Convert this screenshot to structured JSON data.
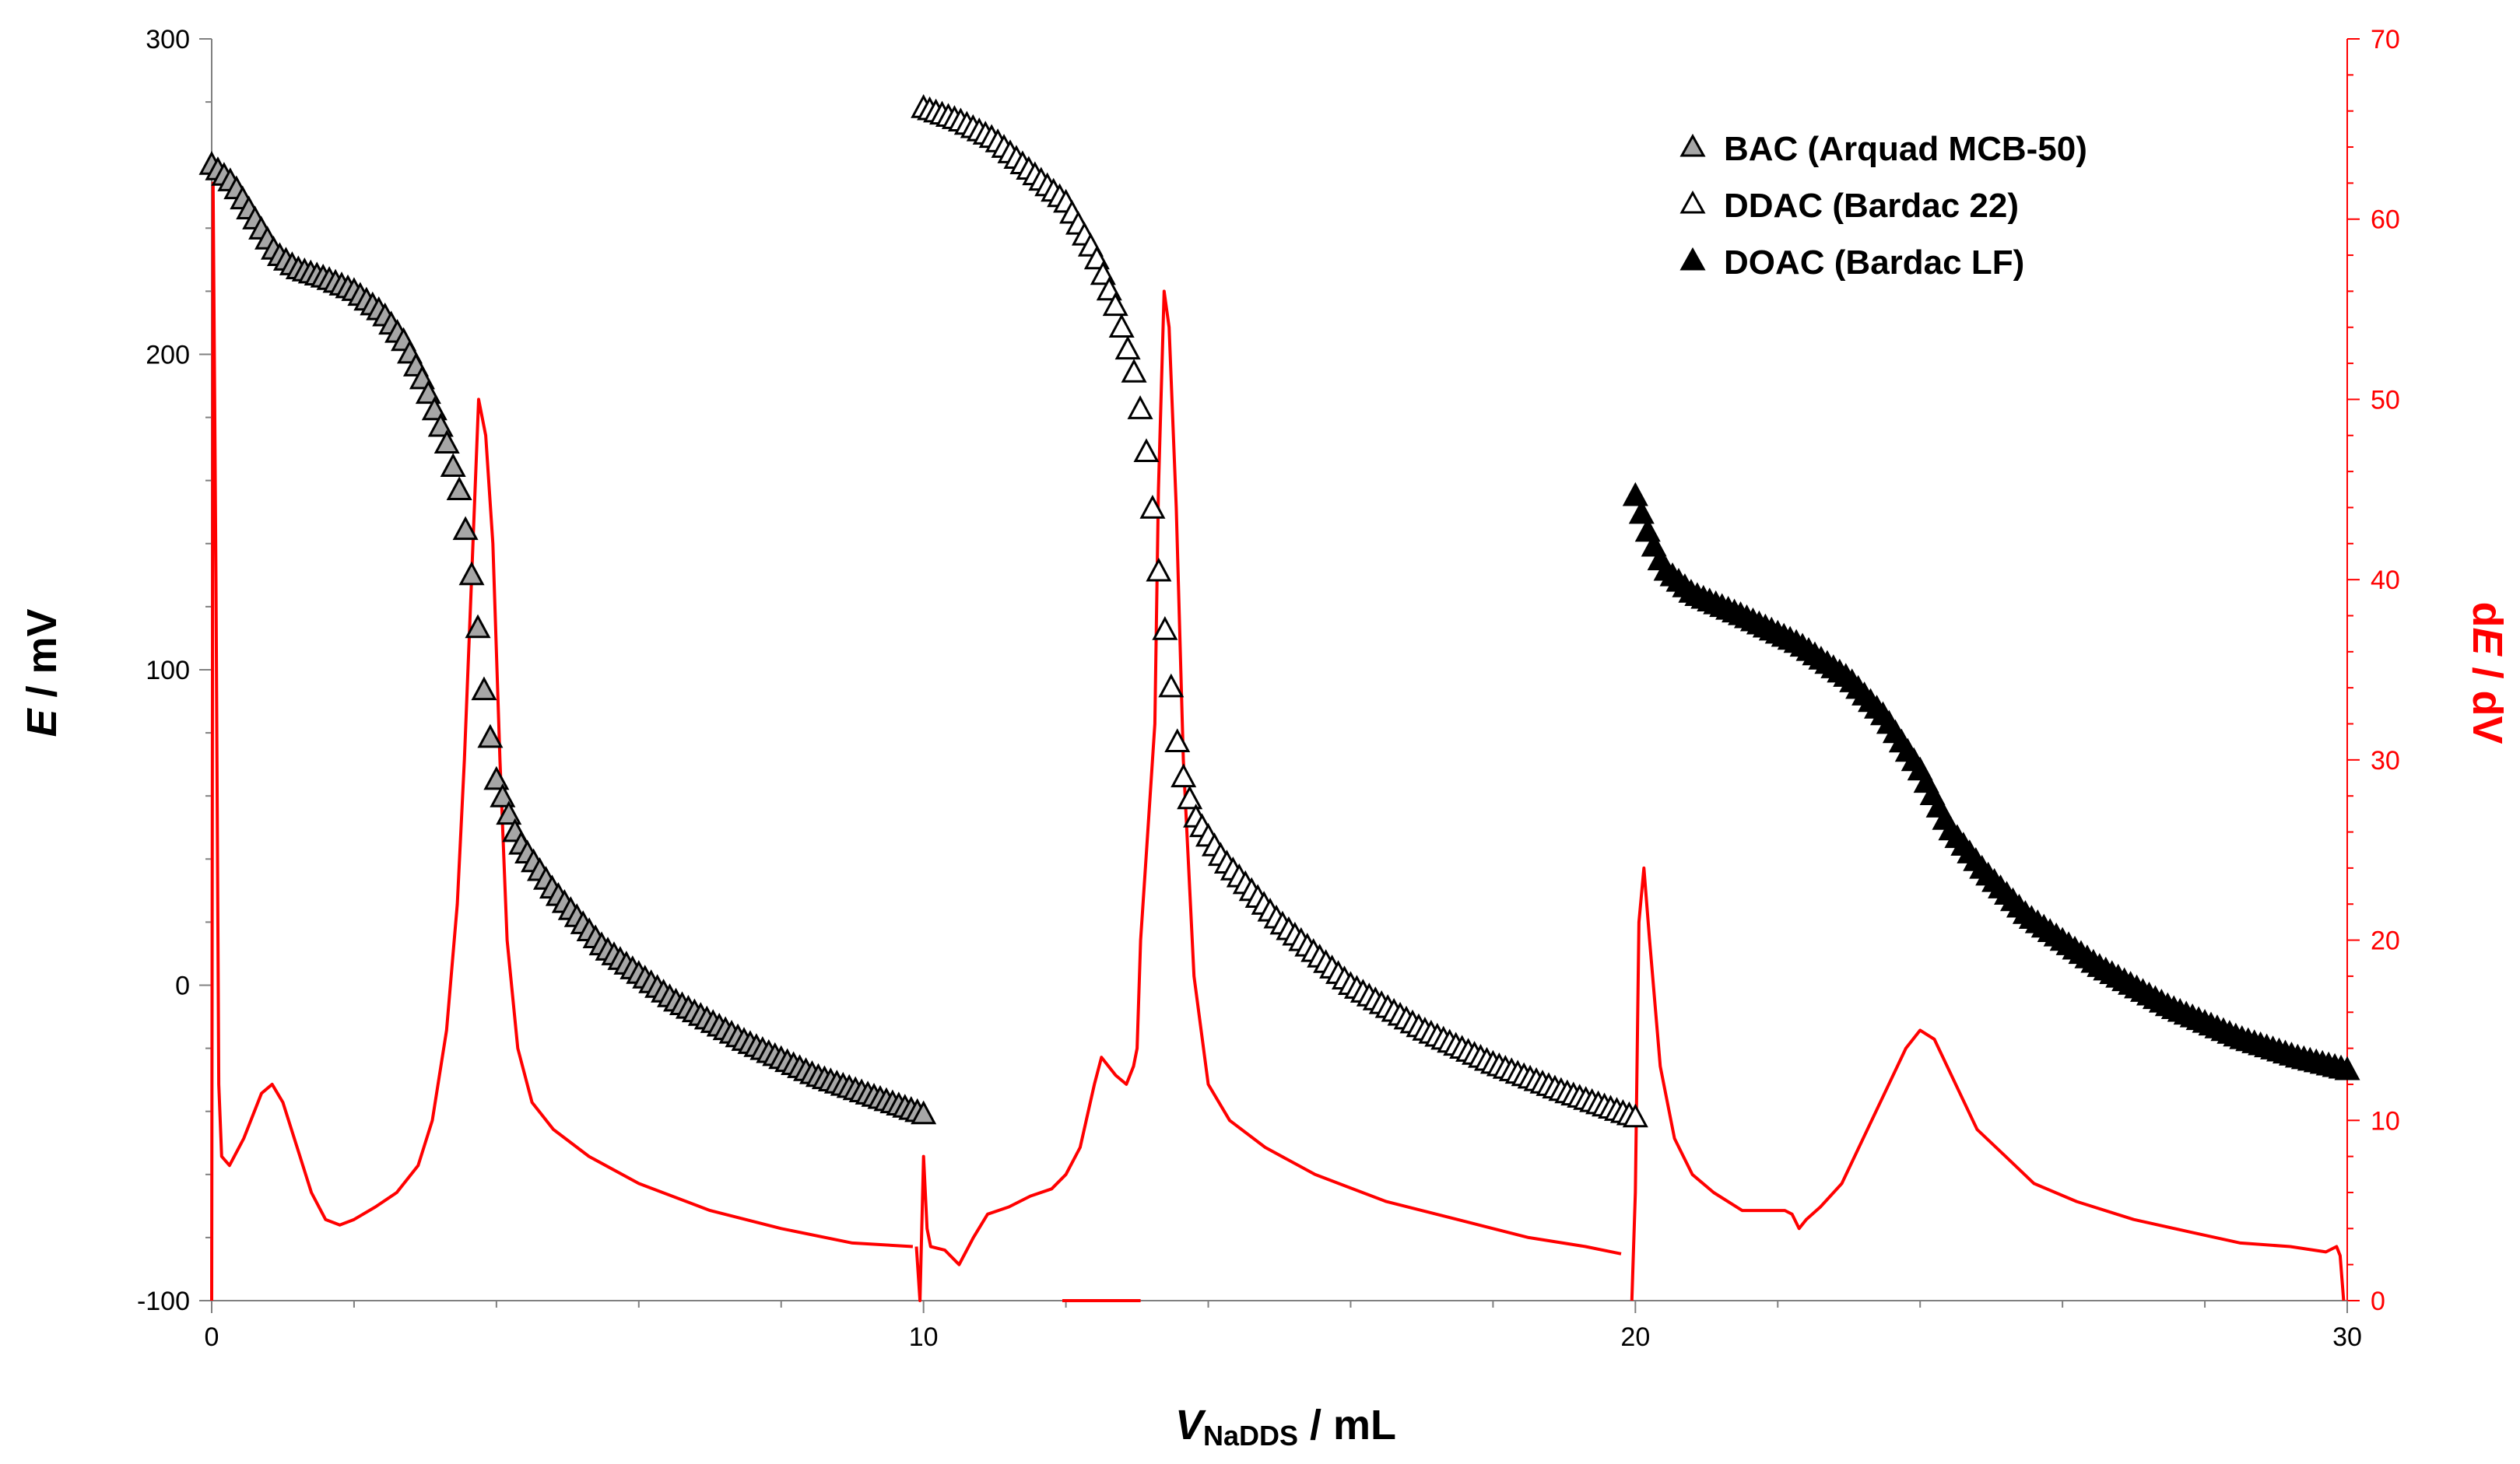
{
  "chart_data": {
    "type": "scatter",
    "xlabel_symbol": "V",
    "xlabel_subscript": "NaDDS",
    "xlabel_unit": " / mL",
    "ylabel_symbol": "E",
    "ylabel_unit": " / mV",
    "y2label_prefix": "d",
    "y2label_symbol": "E",
    "y2label_suffix": " / dV",
    "xlim": [
      0,
      30
    ],
    "ylim": [
      -100,
      300
    ],
    "y2lim": [
      0,
      70
    ],
    "x_ticks": [
      "0",
      "10",
      "20",
      "30"
    ],
    "y_ticks": [
      "-100",
      "0",
      "100",
      "200",
      "300"
    ],
    "y2_ticks": [
      "0",
      "10",
      "20",
      "30",
      "40",
      "50",
      "60",
      "70"
    ],
    "series": [
      {
        "name": "BAC (Arquad MCB-50)",
        "marker": "triangle",
        "fill": "#a6a6a6",
        "x_start": 0,
        "x_end": 10,
        "curve": [
          [
            0,
            260
          ],
          [
            0.3,
            254
          ],
          [
            0.6,
            243
          ],
          [
            0.9,
            232
          ],
          [
            1.2,
            227
          ],
          [
            1.6,
            224
          ],
          [
            2.0,
            220
          ],
          [
            2.4,
            213
          ],
          [
            2.7,
            204
          ],
          [
            3.0,
            190
          ],
          [
            3.3,
            172
          ],
          [
            3.5,
            155
          ],
          [
            3.7,
            122
          ],
          [
            3.85,
            88
          ],
          [
            4.0,
            65
          ],
          [
            4.3,
            46
          ],
          [
            4.8,
            30
          ],
          [
            5.5,
            12
          ],
          [
            6.5,
            -5
          ],
          [
            7.5,
            -18
          ],
          [
            8.5,
            -29
          ],
          [
            10,
            -41
          ]
        ]
      },
      {
        "name": "DDAC (Bardac 22)",
        "marker": "triangle",
        "fill": "#ffffff",
        "x_start": 10,
        "x_end": 20,
        "curve": [
          [
            10,
            278
          ],
          [
            10.5,
            274
          ],
          [
            11.0,
            268
          ],
          [
            11.5,
            258
          ],
          [
            12.0,
            248
          ],
          [
            12.4,
            232
          ],
          [
            12.7,
            215
          ],
          [
            12.95,
            195
          ],
          [
            13.1,
            175
          ],
          [
            13.2,
            155
          ],
          [
            13.3,
            132
          ],
          [
            13.45,
            100
          ],
          [
            13.6,
            70
          ],
          [
            13.8,
            54
          ],
          [
            14.2,
            40
          ],
          [
            15.0,
            20
          ],
          [
            16.0,
            0
          ],
          [
            17.0,
            -14
          ],
          [
            18.0,
            -25
          ],
          [
            19.0,
            -34
          ],
          [
            20.0,
            -42
          ]
        ]
      },
      {
        "name": "DOAC (Bardac LF)",
        "marker": "triangle",
        "fill": "#000000",
        "x_start": 20,
        "x_end": 30,
        "curve": [
          [
            20,
            155
          ],
          [
            20.2,
            142
          ],
          [
            20.4,
            132
          ],
          [
            20.8,
            124
          ],
          [
            21.5,
            117
          ],
          [
            22.3,
            108
          ],
          [
            23.0,
            97
          ],
          [
            23.5,
            85
          ],
          [
            24.0,
            68
          ],
          [
            24.4,
            50
          ],
          [
            24.9,
            36
          ],
          [
            25.5,
            22
          ],
          [
            26.5,
            6
          ],
          [
            27.5,
            -7
          ],
          [
            28.5,
            -17
          ],
          [
            29.3,
            -23
          ],
          [
            30,
            -27
          ]
        ]
      },
      {
        "name": "dE/dV",
        "axis": "right",
        "color": "#ff0000",
        "segments": [
          [
            [
              0,
              0
            ],
            [
              0.02,
              62
            ],
            [
              0.06,
              40
            ],
            [
              0.1,
              12
            ],
            [
              0.14,
              8
            ],
            [
              0.25,
              7.5
            ],
            [
              0.45,
              9
            ],
            [
              0.7,
              11.5
            ],
            [
              0.85,
              12
            ],
            [
              1.0,
              11
            ],
            [
              1.2,
              8.5
            ],
            [
              1.4,
              6
            ],
            [
              1.6,
              4.5
            ],
            [
              1.8,
              4.2
            ],
            [
              2.0,
              4.5
            ],
            [
              2.3,
              5.2
            ],
            [
              2.6,
              6
            ],
            [
              2.9,
              7.5
            ],
            [
              3.1,
              10
            ],
            [
              3.3,
              15
            ],
            [
              3.45,
              22
            ],
            [
              3.55,
              30
            ],
            [
              3.65,
              40
            ],
            [
              3.75,
              50
            ],
            [
              3.85,
              48
            ],
            [
              3.95,
              42
            ],
            [
              4.05,
              30
            ],
            [
              4.15,
              20
            ],
            [
              4.3,
              14
            ],
            [
              4.5,
              11
            ],
            [
              4.8,
              9.5
            ],
            [
              5.3,
              8
            ],
            [
              6.0,
              6.5
            ],
            [
              7.0,
              5
            ],
            [
              8.0,
              4
            ],
            [
              9.0,
              3.2
            ],
            [
              9.85,
              3
            ]
          ],
          [
            [
              9.9,
              3
            ],
            [
              9.95,
              0
            ],
            [
              10.0,
              8
            ],
            [
              10.05,
              4
            ],
            [
              10.1,
              3
            ],
            [
              10.3,
              2.8
            ],
            [
              10.5,
              2
            ],
            [
              10.7,
              3.5
            ],
            [
              10.9,
              4.8
            ],
            [
              11.2,
              5.2
            ],
            [
              11.5,
              5.8
            ],
            [
              11.8,
              6.2
            ],
            [
              12.0,
              7
            ],
            [
              12.2,
              8.5
            ],
            [
              12.4,
              12
            ],
            [
              12.5,
              13.5
            ],
            [
              12.7,
              12.5
            ],
            [
              12.85,
              12
            ],
            [
              12.95,
              13
            ],
            [
              13.0,
              14
            ],
            [
              13.05,
              20
            ],
            [
              13.15,
              26
            ],
            [
              13.25,
              32
            ],
            [
              13.3,
              45
            ],
            [
              13.38,
              56
            ],
            [
              13.45,
              54
            ],
            [
              13.55,
              44
            ],
            [
              13.65,
              30
            ],
            [
              13.8,
              18
            ],
            [
              14.0,
              12
            ],
            [
              14.3,
              10
            ],
            [
              14.8,
              8.5
            ],
            [
              15.5,
              7
            ],
            [
              16.5,
              5.5
            ],
            [
              17.5,
              4.5
            ],
            [
              18.5,
              3.5
            ],
            [
              19.3,
              3
            ],
            [
              19.8,
              2.6
            ]
          ],
          [
            [
              11.95,
              0
            ],
            [
              13.05,
              0
            ]
          ],
          [
            [
              19.95,
              0
            ],
            [
              20.0,
              6
            ],
            [
              20.05,
              21
            ],
            [
              20.12,
              24
            ],
            [
              20.2,
              20
            ],
            [
              20.35,
              13
            ],
            [
              20.55,
              9
            ],
            [
              20.8,
              7
            ],
            [
              21.1,
              6
            ],
            [
              21.5,
              5
            ],
            [
              21.8,
              5
            ],
            [
              22.1,
              5
            ],
            [
              22.2,
              4.8
            ],
            [
              22.3,
              4
            ],
            [
              22.4,
              4.5
            ],
            [
              22.6,
              5.2
            ],
            [
              22.9,
              6.5
            ],
            [
              23.2,
              9
            ],
            [
              23.5,
              11.5
            ],
            [
              23.8,
              14
            ],
            [
              24.0,
              15
            ],
            [
              24.2,
              14.5
            ],
            [
              24.5,
              12
            ],
            [
              24.8,
              9.5
            ],
            [
              25.2,
              8
            ],
            [
              25.6,
              6.5
            ],
            [
              26.2,
              5.5
            ],
            [
              27.0,
              4.5
            ],
            [
              27.8,
              3.8
            ],
            [
              28.5,
              3.2
            ],
            [
              29.2,
              3
            ],
            [
              29.7,
              2.7
            ],
            [
              29.85,
              3
            ],
            [
              29.9,
              2.5
            ],
            [
              29.95,
              0
            ]
          ]
        ]
      }
    ],
    "legend_position": "top-right"
  }
}
